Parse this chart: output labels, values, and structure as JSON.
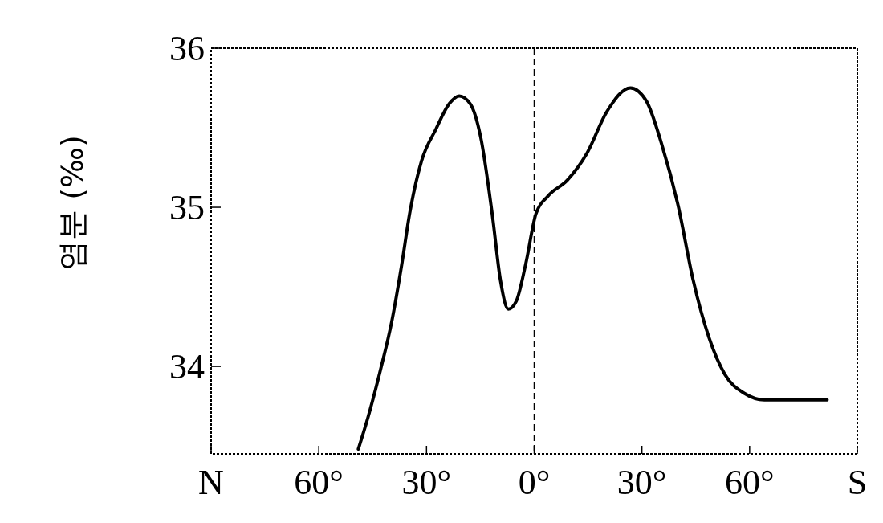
{
  "chart_data": {
    "type": "line",
    "ylabel": "염분 (‰)",
    "x": [
      49,
      46.3,
      42.8,
      39.7,
      36.9,
      34.7,
      31.4,
      27.4,
      23.7,
      20.9,
      17.8,
      14.9,
      11.6,
      9.4,
      7.2,
      5.0,
      2.4,
      -0.5,
      -3.8,
      -9.2,
      -14.7,
      -20.2,
      -26.8,
      -31.2,
      -35.6,
      -40,
      -44.3,
      -48.7,
      -53.1,
      -58.6,
      -64.1,
      -81.6
    ],
    "series": [
      {
        "color": "#000000",
        "values": [
          33.48,
          33.68,
          33.98,
          34.28,
          34.64,
          34.96,
          35.29,
          35.49,
          35.65,
          35.7,
          35.65,
          35.44,
          34.94,
          34.54,
          34.36,
          34.41,
          34.64,
          34.96,
          35.07,
          35.17,
          35.34,
          35.6,
          35.75,
          35.67,
          35.39,
          35.02,
          34.54,
          34.18,
          33.95,
          33.83,
          33.79,
          33.79
        ]
      }
    ],
    "xlim": [
      90,
      -90
    ],
    "xticks": [
      {
        "value": 90,
        "label": "N"
      },
      {
        "value": 60,
        "label": "60°"
      },
      {
        "value": 30,
        "label": "30°"
      },
      {
        "value": 0,
        "label": "0°"
      },
      {
        "value": -30,
        "label": "30°"
      },
      {
        "value": -60,
        "label": "60°"
      },
      {
        "value": -90,
        "label": "S"
      }
    ],
    "ylim": [
      33.45,
      36
    ],
    "yticks": [
      34,
      35,
      36
    ],
    "ref_lines": [
      {
        "axis": "x",
        "value": 0,
        "line_style": "dashed",
        "color": "#000000"
      }
    ],
    "grid": false,
    "marker": "none",
    "line_style": "solid"
  }
}
